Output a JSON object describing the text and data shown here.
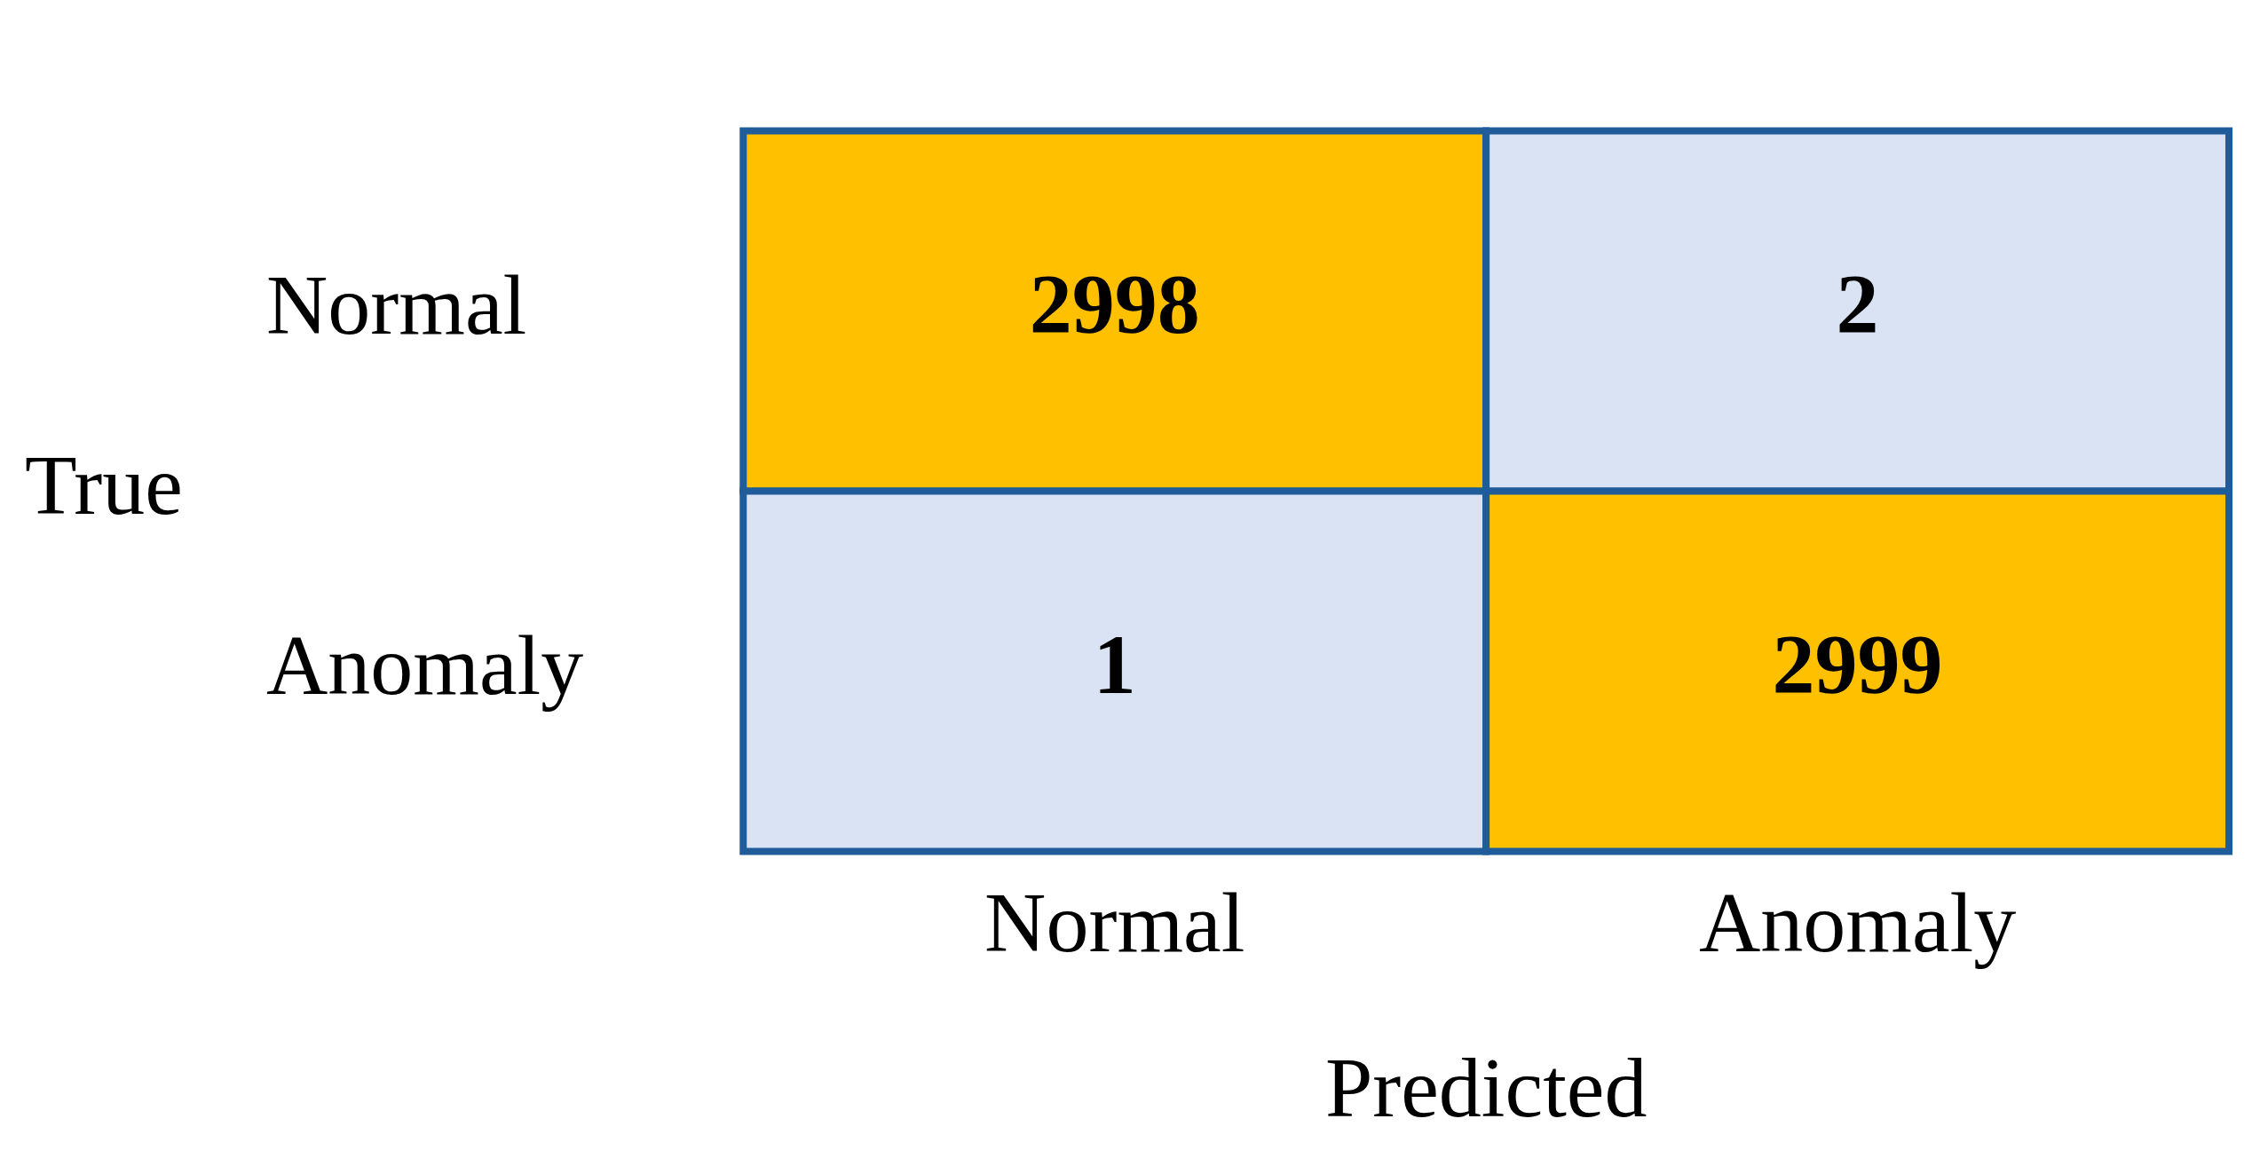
{
  "chart_data": {
    "type": "heatmap",
    "xlabel": "Predicted",
    "ylabel": "True",
    "categories": [
      "Normal",
      "Anomaly"
    ],
    "y_categories": [
      "Normal",
      "Anomaly"
    ],
    "cells": [
      [
        2998,
        2
      ],
      [
        1,
        2999
      ]
    ],
    "data_labels": true,
    "colors": [
      [
        "#ffc000",
        "#dae3f3"
      ],
      [
        "#dae3f3",
        "#ffc000"
      ]
    ]
  }
}
